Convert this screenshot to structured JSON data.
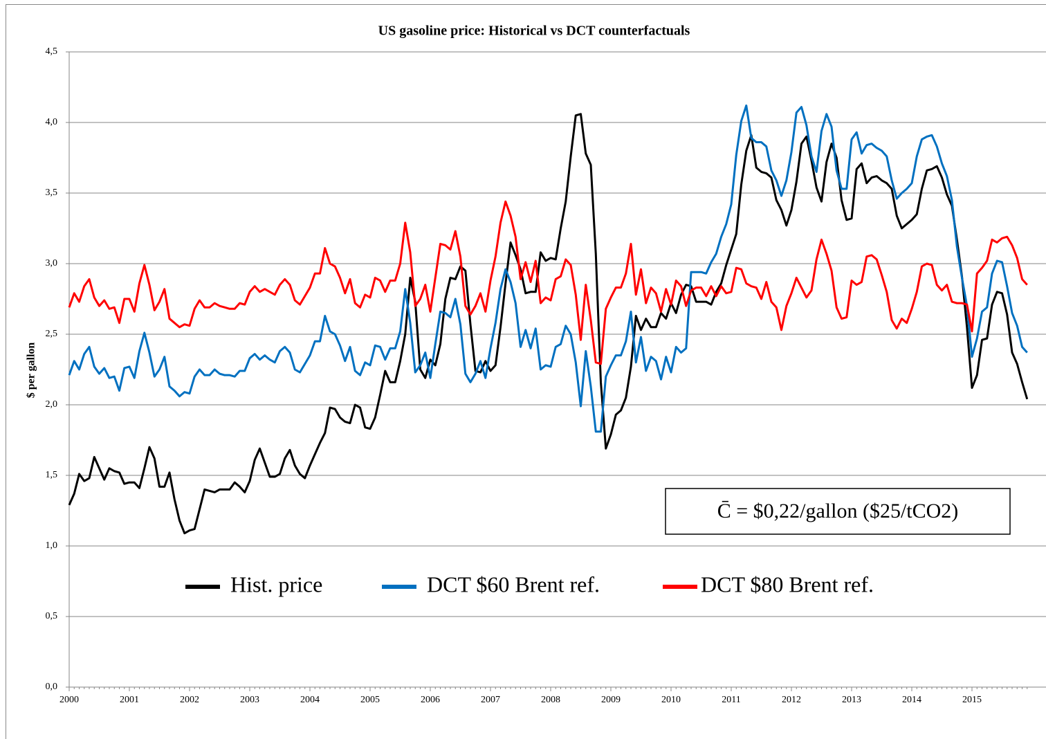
{
  "chart_data": {
    "type": "line",
    "title": "US gasoline price: Historical vs DCT counterfactuals",
    "y_label": "$ per gallon",
    "annotation": "C̄ = $0,22/gallon ($25/tCO2)",
    "categories": [
      "2000",
      null,
      null,
      null,
      null,
      null,
      null,
      null,
      null,
      null,
      null,
      null,
      "2001",
      null,
      null,
      null,
      null,
      null,
      null,
      null,
      null,
      null,
      null,
      null,
      "2002",
      null,
      null,
      null,
      null,
      null,
      null,
      null,
      null,
      null,
      null,
      null,
      "2003",
      null,
      null,
      null,
      null,
      null,
      null,
      null,
      null,
      null,
      null,
      null,
      "2004",
      null,
      null,
      null,
      null,
      null,
      null,
      null,
      null,
      null,
      null,
      null,
      "2005",
      null,
      null,
      null,
      null,
      null,
      null,
      null,
      null,
      null,
      null,
      null,
      "2006",
      null,
      null,
      null,
      null,
      null,
      null,
      null,
      null,
      null,
      null,
      null,
      "2007",
      null,
      null,
      null,
      null,
      null,
      null,
      null,
      null,
      null,
      null,
      null,
      "2008",
      null,
      null,
      null,
      null,
      null,
      null,
      null,
      null,
      null,
      null,
      null,
      "2009",
      null,
      null,
      null,
      null,
      null,
      null,
      null,
      null,
      null,
      null,
      null,
      "2010",
      null,
      null,
      null,
      null,
      null,
      null,
      null,
      null,
      null,
      null,
      null,
      "2011",
      null,
      null,
      null,
      null,
      null,
      null,
      null,
      null,
      null,
      null,
      null,
      "2012",
      null,
      null,
      null,
      null,
      null,
      null,
      null,
      null,
      null,
      null,
      null,
      "2013",
      null,
      null,
      null,
      null,
      null,
      null,
      null,
      null,
      null,
      null,
      null,
      "2014",
      null,
      null,
      null,
      null,
      null,
      null,
      null,
      null,
      null,
      null,
      null,
      "2015",
      null,
      null,
      null,
      null,
      null,
      null,
      null,
      null,
      null,
      null,
      null
    ],
    "series": [
      {
        "name": "Hist. price",
        "color": "#000000",
        "values": [
          1.29,
          1.37,
          1.51,
          1.46,
          1.48,
          1.63,
          1.55,
          1.47,
          1.55,
          1.53,
          1.52,
          1.44,
          1.45,
          1.45,
          1.41,
          1.55,
          1.7,
          1.62,
          1.42,
          1.42,
          1.52,
          1.33,
          1.18,
          1.09,
          1.11,
          1.12,
          1.26,
          1.4,
          1.39,
          1.38,
          1.4,
          1.4,
          1.4,
          1.45,
          1.42,
          1.38,
          1.46,
          1.61,
          1.69,
          1.59,
          1.49,
          1.49,
          1.51,
          1.62,
          1.68,
          1.57,
          1.51,
          1.48,
          1.57,
          1.65,
          1.73,
          1.8,
          1.98,
          1.97,
          1.91,
          1.88,
          1.87,
          2.0,
          1.98,
          1.84,
          1.83,
          1.91,
          2.07,
          2.24,
          2.16,
          2.16,
          2.31,
          2.5,
          2.9,
          2.73,
          2.25,
          2.19,
          2.32,
          2.28,
          2.43,
          2.75,
          2.9,
          2.89,
          2.98,
          2.95,
          2.57,
          2.24,
          2.23,
          2.31,
          2.24,
          2.28,
          2.55,
          2.86,
          3.15,
          3.06,
          2.96,
          2.79,
          2.8,
          2.8,
          3.08,
          3.02,
          3.04,
          3.03,
          3.25,
          3.44,
          3.76,
          4.05,
          4.06,
          3.78,
          3.7,
          3.07,
          2.16,
          1.69,
          1.79,
          1.93,
          1.96,
          2.05,
          2.27,
          2.63,
          2.53,
          2.61,
          2.55,
          2.55,
          2.65,
          2.61,
          2.72,
          2.65,
          2.78,
          2.85,
          2.84,
          2.73,
          2.73,
          2.73,
          2.71,
          2.8,
          2.86,
          2.99,
          3.1,
          3.21,
          3.56,
          3.8,
          3.91,
          3.68,
          3.65,
          3.64,
          3.61,
          3.45,
          3.38,
          3.27,
          3.38,
          3.58,
          3.85,
          3.9,
          3.73,
          3.54,
          3.44,
          3.72,
          3.85,
          3.75,
          3.45,
          3.31,
          3.32,
          3.67,
          3.71,
          3.57,
          3.61,
          3.62,
          3.59,
          3.57,
          3.53,
          3.34,
          3.25,
          3.28,
          3.31,
          3.35,
          3.53,
          3.66,
          3.67,
          3.69,
          3.61,
          3.49,
          3.41,
          3.17,
          2.91,
          2.55,
          2.12,
          2.21,
          2.46,
          2.47,
          2.71,
          2.8,
          2.79,
          2.64,
          2.37,
          2.29,
          2.16,
          2.04
        ]
      },
      {
        "name": "DCT $60 Brent ref.",
        "color": "#0070c0",
        "values": [
          2.21,
          2.31,
          2.25,
          2.36,
          2.41,
          2.27,
          2.22,
          2.26,
          2.19,
          2.2,
          2.1,
          2.26,
          2.27,
          2.19,
          2.38,
          2.51,
          2.37,
          2.2,
          2.25,
          2.34,
          2.13,
          2.1,
          2.06,
          2.09,
          2.08,
          2.2,
          2.25,
          2.21,
          2.21,
          2.25,
          2.22,
          2.21,
          2.21,
          2.2,
          2.24,
          2.24,
          2.33,
          2.36,
          2.32,
          2.35,
          2.32,
          2.3,
          2.38,
          2.41,
          2.37,
          2.25,
          2.23,
          2.29,
          2.35,
          2.45,
          2.45,
          2.63,
          2.52,
          2.5,
          2.42,
          2.31,
          2.41,
          2.24,
          2.21,
          2.3,
          2.28,
          2.42,
          2.41,
          2.32,
          2.4,
          2.4,
          2.52,
          2.82,
          2.58,
          2.23,
          2.28,
          2.37,
          2.19,
          2.43,
          2.66,
          2.65,
          2.62,
          2.75,
          2.57,
          2.22,
          2.16,
          2.22,
          2.31,
          2.19,
          2.4,
          2.58,
          2.82,
          2.96,
          2.87,
          2.72,
          2.41,
          2.53,
          2.4,
          2.54,
          2.25,
          2.28,
          2.27,
          2.41,
          2.43,
          2.56,
          2.5,
          2.3,
          1.99,
          2.38,
          2.13,
          1.81,
          1.81,
          2.2,
          2.28,
          2.35,
          2.35,
          2.45,
          2.66,
          2.3,
          2.48,
          2.24,
          2.34,
          2.31,
          2.18,
          2.34,
          2.23,
          2.41,
          2.37,
          2.4,
          2.94,
          2.94,
          2.94,
          2.93,
          3.01,
          3.07,
          3.19,
          3.28,
          3.42,
          3.77,
          4.01,
          4.12,
          3.89,
          3.86,
          3.86,
          3.83,
          3.66,
          3.59,
          3.48,
          3.59,
          3.79,
          4.07,
          4.11,
          3.98,
          3.76,
          3.65,
          3.94,
          4.06,
          3.97,
          3.66,
          3.53,
          3.53,
          3.88,
          3.93,
          3.78,
          3.84,
          3.85,
          3.82,
          3.8,
          3.76,
          3.59,
          3.46,
          3.5,
          3.53,
          3.57,
          3.76,
          3.88,
          3.9,
          3.91,
          3.83,
          3.71,
          3.62,
          3.45,
          3.12,
          2.9,
          2.7,
          2.34,
          2.47,
          2.66,
          2.69,
          2.93,
          3.02,
          3.01,
          2.84,
          2.65,
          2.56,
          2.41,
          2.37
        ]
      },
      {
        "name": "DCT $80 Brent ref.",
        "color": "#ff0000",
        "values": [
          2.69,
          2.79,
          2.73,
          2.84,
          2.89,
          2.76,
          2.7,
          2.74,
          2.68,
          2.69,
          2.58,
          2.75,
          2.75,
          2.66,
          2.86,
          2.99,
          2.85,
          2.67,
          2.73,
          2.82,
          2.61,
          2.58,
          2.55,
          2.57,
          2.56,
          2.68,
          2.74,
          2.69,
          2.69,
          2.72,
          2.7,
          2.69,
          2.68,
          2.68,
          2.72,
          2.71,
          2.8,
          2.84,
          2.8,
          2.82,
          2.8,
          2.78,
          2.85,
          2.89,
          2.85,
          2.74,
          2.71,
          2.77,
          2.83,
          2.93,
          2.93,
          3.11,
          3.0,
          2.98,
          2.9,
          2.79,
          2.89,
          2.72,
          2.69,
          2.78,
          2.76,
          2.9,
          2.88,
          2.8,
          2.88,
          2.88,
          3.0,
          3.29,
          3.08,
          2.7,
          2.75,
          2.85,
          2.66,
          2.9,
          3.14,
          3.13,
          3.1,
          3.23,
          3.05,
          2.7,
          2.64,
          2.7,
          2.79,
          2.66,
          2.88,
          3.05,
          3.29,
          3.44,
          3.34,
          3.19,
          2.89,
          3.01,
          2.87,
          3.02,
          2.72,
          2.76,
          2.74,
          2.89,
          2.91,
          3.03,
          2.99,
          2.78,
          2.46,
          2.85,
          2.6,
          2.3,
          2.29,
          2.68,
          2.76,
          2.83,
          2.83,
          2.93,
          3.14,
          2.78,
          2.96,
          2.72,
          2.83,
          2.79,
          2.66,
          2.82,
          2.71,
          2.88,
          2.84,
          2.7,
          2.81,
          2.83,
          2.83,
          2.77,
          2.84,
          2.77,
          2.84,
          2.79,
          2.8,
          2.97,
          2.96,
          2.86,
          2.84,
          2.83,
          2.75,
          2.87,
          2.73,
          2.69,
          2.53,
          2.7,
          2.79,
          2.9,
          2.83,
          2.76,
          2.81,
          3.03,
          3.17,
          3.07,
          2.95,
          2.69,
          2.61,
          2.62,
          2.88,
          2.85,
          2.87,
          3.05,
          3.06,
          3.03,
          2.92,
          2.8,
          2.6,
          2.54,
          2.61,
          2.58,
          2.68,
          2.8,
          2.98,
          3.0,
          2.99,
          2.85,
          2.81,
          2.85,
          2.73,
          2.72,
          2.72,
          2.71,
          2.52,
          2.93,
          2.97,
          3.02,
          3.17,
          3.15,
          3.18,
          3.19,
          3.13,
          3.04,
          2.89,
          2.85
        ]
      }
    ],
    "ylim": [
      0,
      4.5
    ],
    "yticks": [
      {
        "value": 0,
        "label": "0,0"
      },
      {
        "value": 0.5,
        "label": "0,5"
      },
      {
        "value": 1,
        "label": "1,0"
      },
      {
        "value": 1.5,
        "label": "1,5"
      },
      {
        "value": 2,
        "label": "2,0"
      },
      {
        "value": 2.5,
        "label": "2,5"
      },
      {
        "value": 3,
        "label": "3,0"
      },
      {
        "value": 3.5,
        "label": "3,5"
      },
      {
        "value": 4,
        "label": "4,0"
      },
      {
        "value": 4.5,
        "label": "4,5"
      }
    ],
    "grid": true,
    "legend": "center"
  }
}
